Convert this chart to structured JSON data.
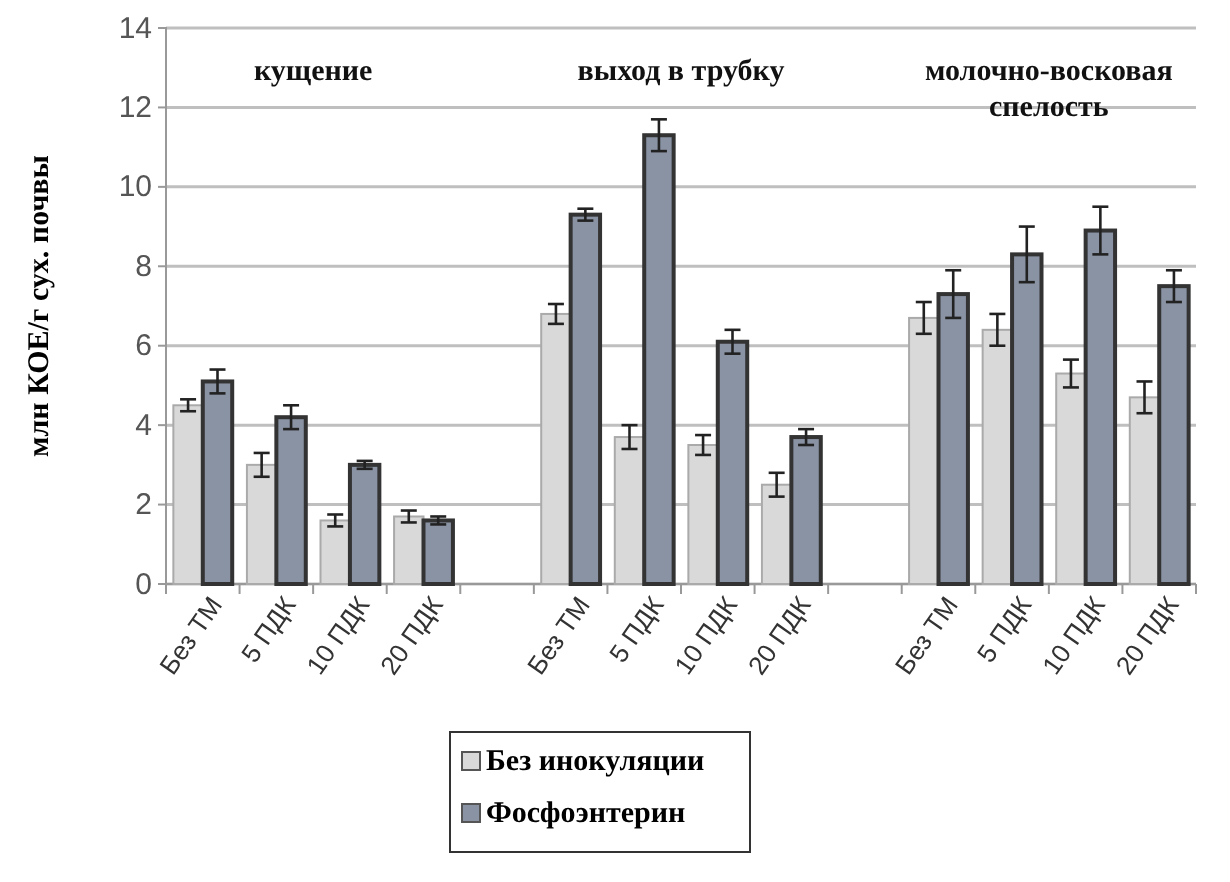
{
  "chart_data": {
    "type": "bar",
    "ylabel": "млн КОЕ/г сух. почвы",
    "categories": [
      "Без ТМ",
      "5 ПДК",
      "10 ПДК",
      "20 ПДК",
      null,
      "Без ТМ",
      "5 ПДК",
      "10 ПДК",
      "20 ПДК",
      null,
      "Без ТМ",
      "5 ПДК",
      "10 ПДК",
      "20 ПДК"
    ],
    "series": [
      {
        "name": "Без инокуляции",
        "color": "#d9d9d9",
        "values": [
          4.5,
          3.0,
          1.6,
          1.7,
          null,
          6.8,
          3.7,
          3.5,
          2.5,
          null,
          6.7,
          6.4,
          5.3,
          4.7
        ],
        "errors": [
          0.15,
          0.3,
          0.15,
          0.15,
          null,
          0.25,
          0.3,
          0.25,
          0.3,
          null,
          0.4,
          0.4,
          0.35,
          0.4
        ]
      },
      {
        "name": "Фосфоэнтерин",
        "color": "#8a93a3",
        "values": [
          5.1,
          4.2,
          3.0,
          1.6,
          null,
          9.3,
          11.3,
          6.1,
          3.7,
          null,
          7.3,
          8.3,
          8.9,
          7.5
        ],
        "errors": [
          0.3,
          0.3,
          0.1,
          0.1,
          null,
          0.15,
          0.4,
          0.3,
          0.2,
          null,
          0.6,
          0.7,
          0.6,
          0.4
        ]
      }
    ],
    "ylim": [
      0,
      14
    ],
    "yticks": [
      0,
      2,
      4,
      6,
      8,
      10,
      12,
      14
    ],
    "grid": "y",
    "legend": "bottom",
    "annotations": [
      "кущение",
      "выход в трубку",
      "молочно-восковая\nспелость"
    ]
  }
}
